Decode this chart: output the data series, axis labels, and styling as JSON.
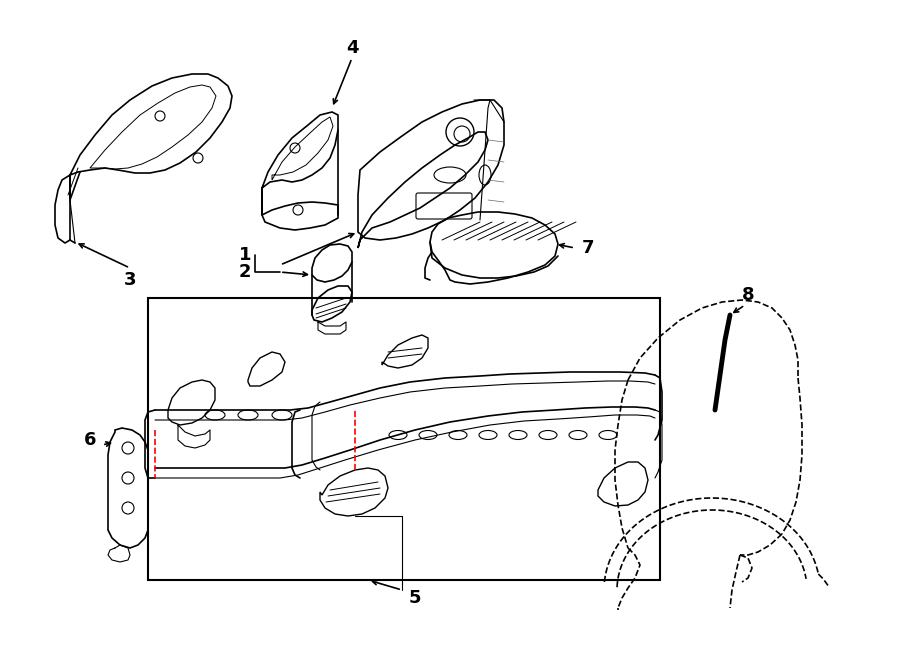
{
  "bg_color": "#ffffff",
  "line_color": "#000000",
  "red_color": "#ff0000",
  "fig_width": 9.0,
  "fig_height": 6.61,
  "dpi": 100,
  "lw": 1.0
}
